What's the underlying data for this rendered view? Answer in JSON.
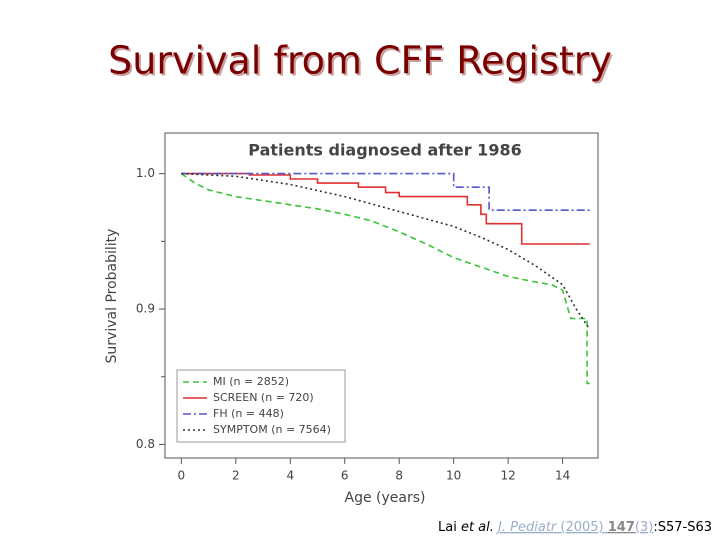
{
  "slide": {
    "title": "Survival from CFF Registry",
    "citation": [
      "Lai ",
      "et al.",
      " ",
      "J. Pediatr",
      " (2005) ",
      "147",
      "(3)",
      ":S57-S63"
    ]
  },
  "chart_data": {
    "type": "line",
    "title": "Patients diagnosed after 1986",
    "xlabel": "Age (years)",
    "ylabel": "Survival Probability",
    "xlim": [
      -0.6,
      15.3
    ],
    "ylim": [
      0.79,
      1.03
    ],
    "xticks": [
      0,
      2,
      4,
      6,
      8,
      10,
      12,
      14
    ],
    "yticks": [
      {
        "value": 1,
        "label": "1.0"
      },
      0.9,
      0.8
    ],
    "legend": "lower left",
    "series": [
      {
        "name": "MI (n = 2852)",
        "color": "#3cc43c",
        "dash": "dashed",
        "x": [
          0,
          0.5,
          1,
          2,
          3,
          4,
          5,
          6,
          7,
          8,
          9,
          10,
          11,
          12,
          13,
          13.6,
          14,
          14.3,
          14.9,
          14.9,
          15
        ],
        "values": [
          1,
          0.993,
          0.988,
          0.983,
          0.98,
          0.977,
          0.974,
          0.97,
          0.965,
          0.957,
          0.948,
          0.938,
          0.931,
          0.924,
          0.92,
          0.918,
          0.914,
          0.893,
          0.893,
          0.845,
          0.845
        ]
      },
      {
        "name": "SCREEN (n = 720)",
        "color": "#e03030",
        "dash": "solid",
        "x": [
          0,
          2.5,
          2.5,
          4,
          4,
          5,
          5,
          6.5,
          6.5,
          7.5,
          7.5,
          8,
          8,
          10.5,
          10.5,
          11,
          11,
          11.2,
          11.2,
          12.5,
          12.5,
          15
        ],
        "values": [
          1,
          1,
          0.999,
          0.999,
          0.996,
          0.996,
          0.993,
          0.993,
          0.99,
          0.99,
          0.986,
          0.986,
          0.983,
          0.983,
          0.977,
          0.977,
          0.97,
          0.97,
          0.963,
          0.963,
          0.948,
          0.948
        ]
      },
      {
        "name": "FH (n = 448)",
        "color": "#5555cc",
        "dash": "dashdot",
        "x": [
          0,
          10,
          10,
          11.3,
          11.3,
          15
        ],
        "values": [
          1,
          1,
          0.99,
          0.99,
          0.973,
          0.973
        ]
      },
      {
        "name": "SYMPTOM (n = 7564)",
        "color": "#333333",
        "dash": "dotted",
        "x": [
          0,
          2,
          4,
          6,
          8,
          10,
          11,
          12,
          13,
          13.5,
          14,
          14.5,
          15
        ],
        "values": [
          1,
          0.998,
          0.992,
          0.983,
          0.972,
          0.961,
          0.953,
          0.944,
          0.932,
          0.925,
          0.918,
          0.9,
          0.885
        ]
      }
    ]
  }
}
